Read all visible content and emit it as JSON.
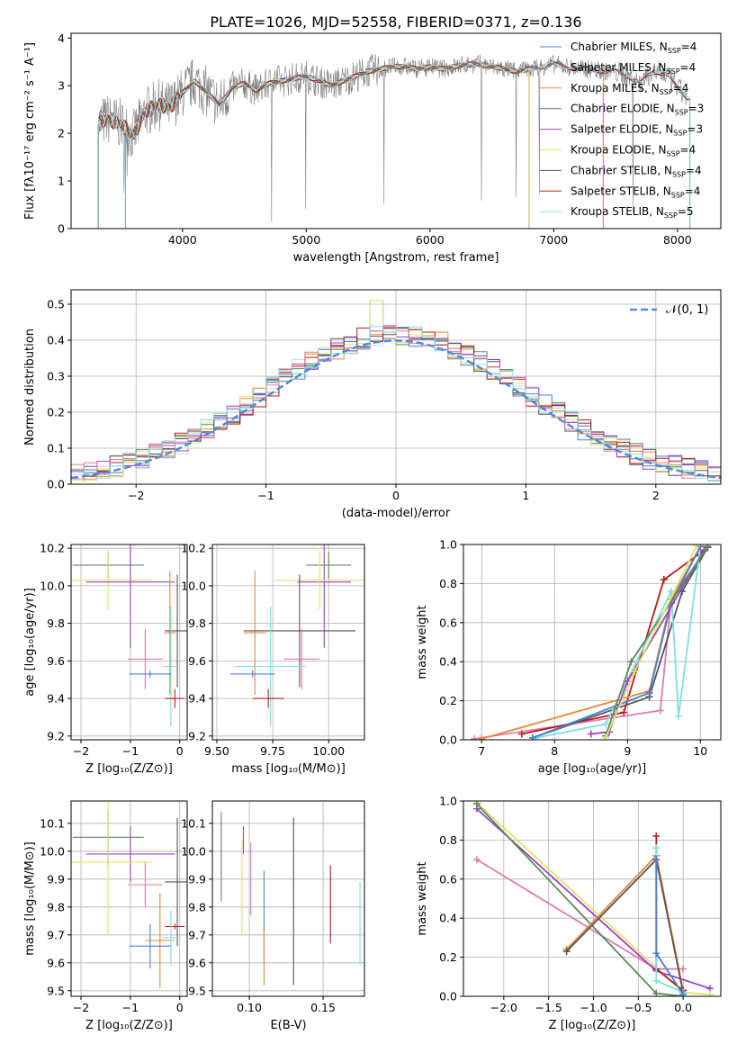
{
  "title": "PLATE=1026, MJD=52558, FIBERID=0371, z=0.136",
  "colors": {
    "chab_miles": "#4a7fd6",
    "salp_miles": "#d6d6d6",
    "krou_miles": "#e8883a",
    "chab_elodie": "#5a8a5a",
    "salp_elodie": "#9b3fc9",
    "krou_elodie": "#e1e36a",
    "chab_stelib": "#555555",
    "salp_stelib": "#bb1a1a",
    "krou_stelib": "#7ee0e0",
    "data": "#808080",
    "pink": "#e07ab0",
    "normal": "#4f8ad8",
    "grid": "#b0b0b0"
  },
  "chart_data": [
    {
      "id": "spectrum",
      "type": "line",
      "xlabel": "wavelength [Angstrom, rest frame]",
      "ylabel": "Flux [fλ10⁻¹⁷ erg cm⁻² s⁻¹ A⁻¹]",
      "xlim": [
        3100,
        8350
      ],
      "ylim": [
        0,
        4.1
      ],
      "xticks": [
        4000,
        5000,
        6000,
        7000,
        8000
      ],
      "yticks": [
        0,
        1,
        2,
        3,
        4
      ],
      "grid": false,
      "legend_position": "top-right",
      "legend": [
        {
          "label": "Chabrier MILES, N_SSP=4",
          "color_key": "chab_miles"
        },
        {
          "label": "Salpeter MILES, N_SSP=4",
          "color_key": "salp_miles"
        },
        {
          "label": "Kroupa MILES, N_SSP=4",
          "color_key": "krou_miles"
        },
        {
          "label": "Chabrier ELODIE, N_SSP=3",
          "color_key": "chab_elodie"
        },
        {
          "label": "Salpeter ELODIE, N_SSP=3",
          "color_key": "salp_elodie"
        },
        {
          "label": "Kroupa ELODIE, N_SSP=4",
          "color_key": "krou_elodie"
        },
        {
          "label": "Chabrier STELIB, N_SSP=4",
          "color_key": "chab_stelib"
        },
        {
          "label": "Salpeter STELIB, N_SSP=4",
          "color_key": "salp_stelib"
        },
        {
          "label": "Kroupa STELIB, N_SSP=5",
          "color_key": "krou_stelib"
        }
      ],
      "continuum": [
        [
          3320,
          2.2
        ],
        [
          3400,
          2.3
        ],
        [
          3500,
          2.2
        ],
        [
          3600,
          1.95
        ],
        [
          3700,
          2.45
        ],
        [
          3800,
          2.6
        ],
        [
          3900,
          2.55
        ],
        [
          4000,
          2.85
        ],
        [
          4100,
          3.1
        ],
        [
          4200,
          2.85
        ],
        [
          4300,
          2.6
        ],
        [
          4400,
          2.95
        ],
        [
          4500,
          3.05
        ],
        [
          4600,
          2.9
        ],
        [
          4700,
          3.05
        ],
        [
          4800,
          3.1
        ],
        [
          4900,
          3.15
        ],
        [
          5000,
          3.2
        ],
        [
          5100,
          3.1
        ],
        [
          5200,
          3.0
        ],
        [
          5300,
          3.1
        ],
        [
          5400,
          3.2
        ],
        [
          5500,
          3.3
        ],
        [
          5600,
          3.35
        ],
        [
          5700,
          3.4
        ],
        [
          5800,
          3.4
        ],
        [
          5900,
          3.35
        ],
        [
          6000,
          3.4
        ],
        [
          6100,
          3.35
        ],
        [
          6200,
          3.4
        ],
        [
          6300,
          3.45
        ],
        [
          6400,
          3.45
        ],
        [
          6500,
          3.4
        ],
        [
          6600,
          3.35
        ],
        [
          6700,
          3.3
        ],
        [
          6800,
          3.35
        ],
        [
          6900,
          3.4
        ],
        [
          7000,
          3.45
        ],
        [
          7100,
          3.4
        ],
        [
          7200,
          3.35
        ],
        [
          7300,
          3.35
        ],
        [
          7400,
          3.3
        ],
        [
          7500,
          3.3
        ],
        [
          7600,
          3.2
        ],
        [
          7700,
          3.05
        ],
        [
          7800,
          3.3
        ],
        [
          7900,
          3.25
        ],
        [
          8000,
          2.95
        ],
        [
          8080,
          2.75
        ]
      ]
    },
    {
      "id": "residuals",
      "type": "histogram",
      "xlabel": "(data-model)/error",
      "ylabel": "Normed distribution",
      "xlim": [
        -2.5,
        2.5
      ],
      "ylim": [
        0,
        0.54
      ],
      "xticks": [
        -2,
        -1,
        0,
        1,
        2
      ],
      "yticks": [
        0.0,
        0.1,
        0.2,
        0.3,
        0.4,
        0.5
      ],
      "grid": true,
      "legend_position": "top-right",
      "legend": [
        {
          "label": "𝒩(0, 1)",
          "color_key": "normal"
        }
      ],
      "bin_width": 0.1,
      "normal_mu": 0,
      "normal_sigma": 1
    },
    {
      "id": "age_vs_Z",
      "type": "errorbar",
      "xlabel": "Z [log₁₀(Z/Z⊙)]",
      "ylabel": "age  [log₁₀(age/yr)]",
      "xlim": [
        -2.2,
        0.15
      ],
      "ylim": [
        9.18,
        10.22
      ],
      "xticks": [
        -2,
        -1,
        0
      ],
      "yticks": [
        9.2,
        9.4,
        9.6,
        9.8,
        10.0,
        10.2
      ],
      "grid": true,
      "bars": [
        {
          "color_key": "chab_elodie",
          "x": -1.45,
          "xerr": 0.72,
          "y": 10.11,
          "yerr": 0.07
        },
        {
          "color_key": "krou_elodie",
          "x": -1.45,
          "xerr": 0.9,
          "y": 10.03,
          "yerr": 0.16
        },
        {
          "color_key": "salp_elodie",
          "x": -1.0,
          "xerr": 0.9,
          "y": 10.02,
          "yerr": 0.35
        },
        {
          "color_key": "krou_miles",
          "x": -0.2,
          "xerr": 0.12,
          "y": 9.75,
          "yerr": 0.33
        },
        {
          "color_key": "chab_stelib",
          "x": -0.05,
          "xerr": 0.25,
          "y": 9.76,
          "yerr": 0.3
        },
        {
          "color_key": "pink",
          "x": -0.7,
          "xerr": 0.35,
          "y": 9.61,
          "yerr": 0.16
        },
        {
          "color_key": "krou_stelib",
          "x": -0.18,
          "xerr": 0.18,
          "y": 9.57,
          "yerr": 0.32
        },
        {
          "color_key": "chab_miles",
          "x": -0.6,
          "xerr": 0.42,
          "y": 9.53,
          "yerr": 0.02
        },
        {
          "color_key": "salp_stelib",
          "x": -0.1,
          "xerr": 0.2,
          "y": 9.4,
          "yerr": 0.05
        }
      ]
    },
    {
      "id": "age_vs_mass",
      "type": "errorbar",
      "xlabel": "mass [log₁₀(M/M⊙)]",
      "ylabel": "",
      "xlim": [
        9.48,
        10.16
      ],
      "ylim": [
        9.18,
        10.22
      ],
      "xticks": [
        9.5,
        9.75,
        10.0
      ],
      "yticks": [
        9.2,
        9.4,
        9.6,
        9.8,
        10.0,
        10.2
      ],
      "grid": true,
      "bars": [
        {
          "color_key": "chab_elodie",
          "x": 10.0,
          "xerr": 0.1,
          "y": 10.11,
          "yerr": 0.07
        },
        {
          "color_key": "salp_elodie",
          "x": 9.98,
          "xerr": 0.12,
          "y": 10.02,
          "yerr": 0.35
        },
        {
          "color_key": "krou_elodie",
          "x": 9.96,
          "xerr": 0.2,
          "y": 10.03,
          "yerr": 0.16
        },
        {
          "color_key": "krou_miles",
          "x": 9.67,
          "xerr": 0.05,
          "y": 9.75,
          "yerr": 0.33
        },
        {
          "color_key": "chab_stelib",
          "x": 9.87,
          "xerr": 0.25,
          "y": 9.76,
          "yerr": 0.3
        },
        {
          "color_key": "pink",
          "x": 9.88,
          "xerr": 0.08,
          "y": 9.61,
          "yerr": 0.16
        },
        {
          "color_key": "krou_stelib",
          "x": 9.74,
          "xerr": 0.16,
          "y": 9.57,
          "yerr": 0.32
        },
        {
          "color_key": "chab_miles",
          "x": 9.66,
          "xerr": 0.1,
          "y": 9.53,
          "yerr": 0.02
        },
        {
          "color_key": "salp_stelib",
          "x": 9.73,
          "xerr": 0.07,
          "y": 9.4,
          "yerr": 0.05
        }
      ]
    },
    {
      "id": "mass_vs_Z",
      "type": "errorbar",
      "xlabel": "Z [log₁₀(Z/Z⊙)]",
      "ylabel": "mass [log₁₀(M/M⊙)]",
      "xlim": [
        -2.2,
        0.15
      ],
      "ylim": [
        9.48,
        10.18
      ],
      "xticks": [
        -2,
        -1,
        0
      ],
      "yticks": [
        9.5,
        9.6,
        9.7,
        9.8,
        9.9,
        10.0,
        10.1
      ],
      "grid": true,
      "bars": [
        {
          "color_key": "chab_elodie",
          "x": -1.45,
          "xerr": 0.72,
          "y": 10.05,
          "yerr": 0.1
        },
        {
          "color_key": "salp_elodie",
          "x": -1.0,
          "xerr": 0.9,
          "y": 9.99,
          "yerr": 0.1
        },
        {
          "color_key": "krou_elodie",
          "x": -1.45,
          "xerr": 0.9,
          "y": 9.96,
          "yerr": 0.26
        },
        {
          "color_key": "chab_stelib",
          "x": -0.05,
          "xerr": 0.25,
          "y": 9.89,
          "yerr": 0.23
        },
        {
          "color_key": "pink",
          "x": -0.7,
          "xerr": 0.35,
          "y": 9.88,
          "yerr": 0.08
        },
        {
          "color_key": "salp_stelib",
          "x": -0.1,
          "xerr": 0.2,
          "y": 9.73,
          "yerr": 0.01
        },
        {
          "color_key": "krou_miles",
          "x": -0.4,
          "xerr": 0.3,
          "y": 9.68,
          "yerr": 0.17
        },
        {
          "color_key": "krou_stelib",
          "x": -0.18,
          "xerr": 0.18,
          "y": 9.69,
          "yerr": 0.1
        },
        {
          "color_key": "chab_miles",
          "x": -0.6,
          "xerr": 0.42,
          "y": 9.66,
          "yerr": 0.08
        }
      ]
    },
    {
      "id": "mass_vs_EBV",
      "type": "errorbar",
      "xlabel": "E(B-V)",
      "ylabel": "",
      "xlim": [
        0.075,
        0.178
      ],
      "ylim": [
        9.48,
        10.18
      ],
      "xticks": [
        0.1,
        0.15
      ],
      "yticks": [
        9.5,
        9.6,
        9.7,
        9.8,
        9.9,
        10.0,
        10.1
      ],
      "grid": true,
      "bars": [
        {
          "color_key": "chab_elodie",
          "x": 0.081,
          "xerr": 0,
          "y": 9.98,
          "yerr": 0.16
        },
        {
          "color_key": "salp_elodie",
          "x": 0.096,
          "xerr": 0,
          "y": 10.04,
          "yerr": 0.05
        },
        {
          "color_key": "krou_elodie",
          "x": 0.095,
          "xerr": 0,
          "y": 9.87,
          "yerr": 0.17
        },
        {
          "color_key": "pink",
          "x": 0.101,
          "xerr": 0,
          "y": 9.9,
          "yerr": 0.13
        },
        {
          "color_key": "chab_miles",
          "x": 0.11,
          "xerr": 0,
          "y": 9.77,
          "yerr": 0.16
        },
        {
          "color_key": "krou_miles",
          "x": 0.11,
          "xerr": 0,
          "y": 9.62,
          "yerr": 0.1
        },
        {
          "color_key": "chab_stelib",
          "x": 0.13,
          "xerr": 0,
          "y": 9.82,
          "yerr": 0.3
        },
        {
          "color_key": "salp_stelib",
          "x": 0.155,
          "xerr": 0,
          "y": 9.81,
          "yerr": 0.14
        },
        {
          "color_key": "krou_stelib",
          "x": 0.175,
          "xerr": 0,
          "y": 9.74,
          "yerr": 0.15
        }
      ]
    },
    {
      "id": "weight_vs_age",
      "type": "line",
      "xlabel": "age  [log₁₀(age/yr)]",
      "ylabel": "mass weight",
      "xlim": [
        6.75,
        10.28
      ],
      "ylim": [
        0,
        1
      ],
      "xticks": [
        7,
        8,
        9,
        10
      ],
      "yticks": [
        0.0,
        0.2,
        0.4,
        0.6,
        0.8,
        1.0
      ],
      "grid": true,
      "series": [
        {
          "color_key": "pink",
          "x": [
            6.9,
            9.45,
            9.6,
            10.1
          ],
          "y": [
            0.005,
            0.15,
            0.72,
            0.985
          ]
        },
        {
          "color_key": "salp_stelib",
          "x": [
            7.55,
            8.95,
            9.5,
            10.05
          ],
          "y": [
            0.03,
            0.14,
            0.82,
            0.97
          ]
        },
        {
          "color_key": "chab_stelib",
          "x": [
            7.7,
            9.3,
            9.75,
            10.1
          ],
          "y": [
            0.01,
            0.22,
            0.76,
            0.985
          ]
        },
        {
          "color_key": "krou_stelib",
          "x": [
            7.75,
            8.7,
            9.6,
            9.7,
            10.0
          ],
          "y": [
            0.01,
            0.08,
            0.76,
            0.12,
            0.99
          ]
        },
        {
          "color_key": "krou_miles",
          "x": [
            7.0,
            9.3,
            9.6,
            10.0
          ],
          "y": [
            0.005,
            0.25,
            0.72,
            0.99
          ]
        },
        {
          "color_key": "chab_miles",
          "x": [
            7.7,
            9.3,
            9.6,
            10.0
          ],
          "y": [
            0.01,
            0.24,
            0.7,
            0.99
          ]
        },
        {
          "color_key": "salp_elodie",
          "x": [
            8.5,
            8.75,
            9.0,
            10.05
          ],
          "y": [
            0.03,
            0.04,
            0.3,
            0.97
          ]
        },
        {
          "color_key": "chab_elodie",
          "x": [
            8.7,
            9.05,
            10.1
          ],
          "y": [
            0.02,
            0.4,
            0.99
          ]
        },
        {
          "color_key": "krou_elodie",
          "x": [
            8.7,
            9.1,
            9.95
          ],
          "y": [
            0.01,
            0.35,
            0.995
          ]
        }
      ]
    },
    {
      "id": "weight_vs_Z",
      "type": "line",
      "xlabel": "Z [log₁₀(Z/Z⊙)]",
      "ylabel": "mass weight",
      "xlim": [
        -2.45,
        0.42
      ],
      "ylim": [
        0,
        1
      ],
      "xticks": [
        -2.0,
        -1.5,
        -1.0,
        -0.5,
        0.0
      ],
      "yticks": [
        0.0,
        0.2,
        0.4,
        0.6,
        0.8,
        1.0
      ],
      "grid": true,
      "series": [
        {
          "color_key": "pink",
          "x": [
            -2.3,
            -0.3,
            0.0
          ],
          "y": [
            0.7,
            0.14,
            0.14
          ]
        },
        {
          "color_key": "salp_elodie",
          "x": [
            -2.3,
            -0.3,
            0.3
          ],
          "y": [
            0.96,
            0.13,
            0.04
          ]
        },
        {
          "color_key": "krou_elodie",
          "x": [
            -2.3,
            0.0,
            0.3
          ],
          "y": [
            0.99,
            0.02,
            0.01
          ]
        },
        {
          "color_key": "chab_elodie",
          "x": [
            -2.3,
            -0.3,
            0.0
          ],
          "y": [
            0.985,
            0.015,
            0.0
          ]
        },
        {
          "color_key": "krou_miles",
          "x": [
            -1.3,
            -0.3,
            0.0
          ],
          "y": [
            0.24,
            0.72,
            0.03
          ]
        },
        {
          "color_key": "chab_stelib",
          "x": [
            -1.3,
            -0.3,
            0.0
          ],
          "y": [
            0.23,
            0.7,
            0.02
          ]
        },
        {
          "color_key": "salp_stelib",
          "x": [
            -0.3,
            -0.3,
            0.0
          ],
          "y": [
            0.82,
            0.14,
            0.03
          ]
        },
        {
          "color_key": "krou_stelib",
          "x": [
            -0.3,
            -0.3,
            0.0
          ],
          "y": [
            0.76,
            0.08,
            0.02
          ]
        },
        {
          "color_key": "chab_miles",
          "x": [
            -0.3,
            -0.3,
            0.0
          ],
          "y": [
            0.7,
            0.22,
            0.01
          ]
        }
      ]
    }
  ]
}
